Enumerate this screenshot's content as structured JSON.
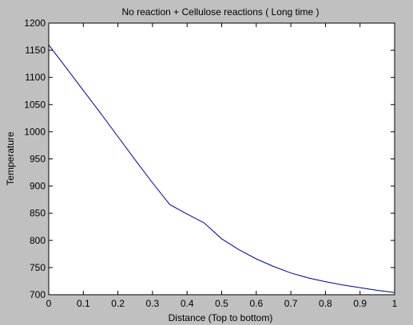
{
  "chart_data": {
    "type": "line",
    "title": "No reaction + Cellulose reactions ( Long time )",
    "xlabel": "Distance (Top to bottom)",
    "ylabel": "Temperature",
    "xlim": [
      0,
      1
    ],
    "ylim": [
      700,
      1200
    ],
    "xticks": [
      0,
      0.1,
      0.2,
      0.3,
      0.4,
      0.5,
      0.6,
      0.7,
      0.8,
      0.9,
      1
    ],
    "xtick_labels": [
      "0",
      "0.1",
      "0.2",
      "0.3",
      "0.4",
      "0.5",
      "0.6",
      "0.7",
      "0.8",
      "0.9",
      "1"
    ],
    "yticks": [
      700,
      750,
      800,
      850,
      900,
      950,
      1000,
      1050,
      1100,
      1150,
      1200
    ],
    "ytick_labels": [
      "700",
      "750",
      "800",
      "850",
      "900",
      "950",
      "1000",
      "1050",
      "1100",
      "1150",
      "1200"
    ],
    "grid": false,
    "legend": "none",
    "series": [
      {
        "color": "#00008b",
        "x": [
          0,
          0.05,
          0.1,
          0.15,
          0.2,
          0.25,
          0.3,
          0.35,
          0.4,
          0.45,
          0.5,
          0.55,
          0.6,
          0.65,
          0.7,
          0.75,
          0.8,
          0.85,
          0.9,
          0.95,
          1
        ],
        "y": [
          1160,
          1118,
          1076,
          1034,
          991,
          948,
          906,
          866,
          848.5,
          832,
          803,
          783,
          766,
          752,
          740,
          731,
          724,
          718,
          713,
          708,
          704
        ]
      }
    ]
  }
}
